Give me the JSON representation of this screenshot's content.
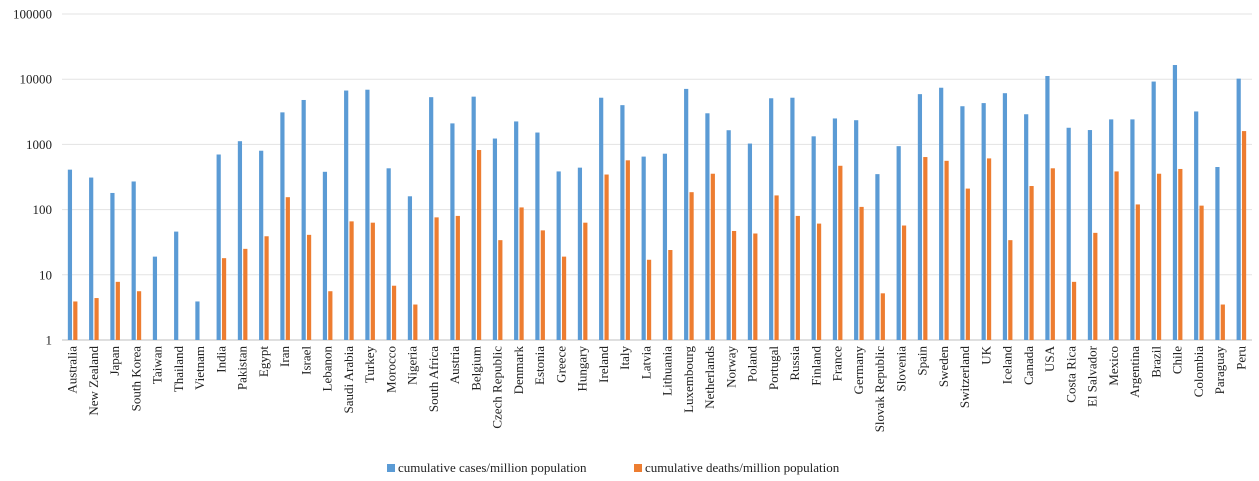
{
  "chart_data": {
    "type": "bar",
    "yscale": "log",
    "ylim": [
      1,
      100000
    ],
    "yticks": [
      "1",
      "10",
      "100",
      "1000",
      "10000",
      "100000"
    ],
    "grid": true,
    "legend_position": "bottom",
    "title": "",
    "xlabel": "",
    "ylabel": "",
    "categories": [
      "Australia",
      "New Zealand",
      "Japan",
      "South Korea",
      "Taiwan",
      "Thailand",
      "Vietnam",
      "India",
      "Pakistan",
      "Egypt",
      "Iran",
      "Israel",
      "Lebanon",
      "Saudi Arabia",
      "Turkey",
      "Morocco",
      "Nigeria",
      "South Africa",
      "Austria",
      "Belgium",
      "Czech Republic",
      "Denmark",
      "Estonia",
      "Greece",
      "Hungary",
      "Ireland",
      "Italy",
      "Latvia",
      "Lithuania",
      "Luxembourg",
      "Netherlands",
      "Norway",
      "Poland",
      "Portugal",
      "Russia",
      "Finland",
      "France",
      "Germany",
      "Slovak Republic",
      "Slovenia",
      "Spain",
      "Sweden",
      "Switzerland",
      "UK",
      "Iceland",
      "Canada",
      "USA",
      "Costa Rica",
      "El Salvador",
      "Mexico",
      "Argentina",
      "Brazil",
      "Chile",
      "Colombia",
      "Paraguay",
      "Peru"
    ],
    "series": [
      {
        "name": "cumulative cases/million population",
        "color": "#5b9bd5",
        "values": [
          410,
          310,
          180,
          270,
          19,
          46,
          3.9,
          700,
          1120,
          800,
          3100,
          4800,
          380,
          6700,
          6900,
          430,
          160,
          5300,
          2100,
          5400,
          1230,
          2250,
          1520,
          385,
          440,
          5200,
          4000,
          650,
          720,
          7100,
          3000,
          1650,
          1030,
          5100,
          5200,
          1330,
          2500,
          2350,
          350,
          940,
          5900,
          7400,
          3850,
          4300,
          6100,
          2900,
          11200,
          1800,
          1660,
          2420,
          2420,
          9200,
          16500,
          3200,
          450,
          10200
        ]
      },
      {
        "name": "cumulative deaths/million population",
        "color": "#ed7d31",
        "values": [
          3.9,
          4.4,
          7.8,
          5.6,
          null,
          null,
          null,
          18,
          25,
          39,
          155,
          41,
          5.6,
          66,
          63,
          6.8,
          3.5,
          76,
          80,
          820,
          34,
          108,
          48,
          19,
          63,
          345,
          570,
          17,
          24,
          185,
          355,
          47,
          43,
          165,
          80,
          61,
          470,
          110,
          5.2,
          57,
          640,
          560,
          210,
          610,
          34,
          230,
          430,
          7.8,
          44,
          385,
          120,
          355,
          420,
          115,
          3.5,
          1600
        ]
      }
    ]
  }
}
